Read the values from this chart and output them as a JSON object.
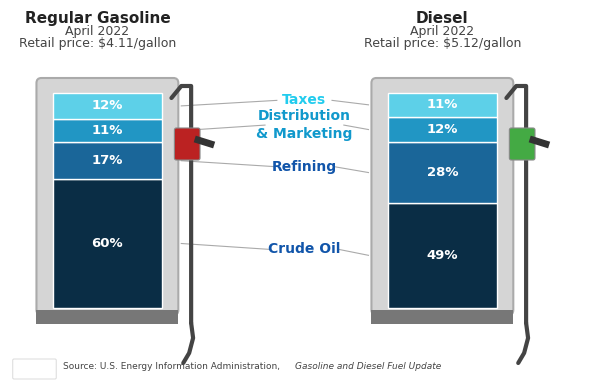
{
  "gasoline_title": "Regular Gasoline",
  "gasoline_subtitle": "April 2022",
  "gasoline_price": "Retail price: $4.11/gallon",
  "diesel_title": "Diesel",
  "diesel_subtitle": "April 2022",
  "diesel_price": "Retail price: $5.12/gallon",
  "gasoline_values": [
    60,
    17,
    11,
    12
  ],
  "diesel_values": [
    49,
    28,
    12,
    11
  ],
  "colors": [
    "#0a2d45",
    "#1a6699",
    "#2196c4",
    "#5dd0e8"
  ],
  "labels": [
    "Crude Oil",
    "Refining",
    "Distribution\n& Marketing",
    "Taxes"
  ],
  "label_colors": [
    "#1a5276",
    "#1a5276",
    "#1a97c4",
    "#1a97c4"
  ],
  "source_text": "Source: U.S. Energy Information Administration, ",
  "source_italic": "Gasoline and Diesel Fuel Update",
  "bg_color": "#ffffff",
  "pump_body_color": "#d0d0d0",
  "pump_base_color": "#808080",
  "pump_inner_color": "#f0f0f0"
}
